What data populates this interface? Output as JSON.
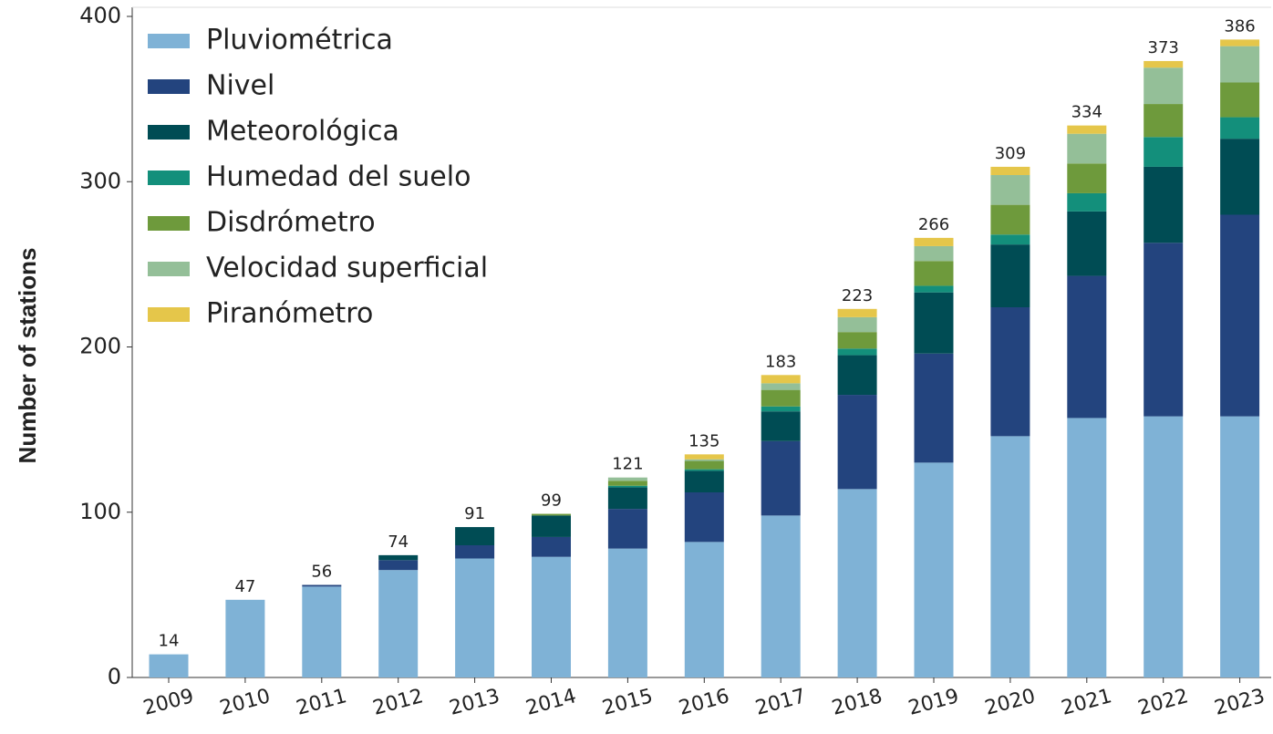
{
  "chart_data": {
    "type": "stacked_bar",
    "ylabel": "Number of stations",
    "categories": [
      "2009",
      "2010",
      "2011",
      "2012",
      "2013",
      "2014",
      "2015",
      "2016",
      "2017",
      "2018",
      "2019",
      "2020",
      "2021",
      "2022",
      "2023"
    ],
    "series": [
      {
        "name": "Pluviométrica",
        "color": "#7fb2d6",
        "values": [
          14,
          47,
          55,
          65,
          72,
          73,
          78,
          82,
          98,
          114,
          130,
          146,
          157,
          158,
          158
        ]
      },
      {
        "name": "Nivel",
        "color": "#23447e",
        "values": [
          0,
          0,
          1,
          6,
          8,
          12,
          24,
          30,
          45,
          57,
          66,
          78,
          86,
          105,
          122
        ]
      },
      {
        "name": "Meteorológica",
        "color": "#004c54",
        "values": [
          0,
          0,
          0,
          3,
          11,
          13,
          13,
          13,
          18,
          24,
          37,
          38,
          39,
          46,
          46
        ]
      },
      {
        "name": "Humedad del suelo",
        "color": "#138f7b",
        "values": [
          0,
          0,
          0,
          0,
          0,
          0,
          1,
          1,
          3,
          4,
          4,
          6,
          11,
          18,
          13
        ]
      },
      {
        "name": "Disdrómetro",
        "color": "#6e9a3c",
        "values": [
          0,
          0,
          0,
          0,
          0,
          1,
          3,
          5,
          10,
          10,
          15,
          18,
          18,
          20,
          21
        ]
      },
      {
        "name": "Velocidad superficial",
        "color": "#94bf98",
        "values": [
          0,
          0,
          0,
          0,
          0,
          0,
          2,
          1,
          4,
          9,
          9,
          18,
          18,
          22,
          22
        ]
      },
      {
        "name": "Piranómetro",
        "color": "#e5c64a",
        "values": [
          0,
          0,
          0,
          0,
          0,
          0,
          0,
          3,
          5,
          5,
          5,
          5,
          5,
          4,
          4
        ]
      }
    ],
    "totals": [
      14,
      47,
      56,
      74,
      91,
      99,
      121,
      135,
      183,
      223,
      266,
      309,
      334,
      373,
      386
    ],
    "ylim": [
      0,
      400
    ],
    "yticks": [
      0,
      100,
      200,
      300,
      400
    ],
    "legend": "upper left"
  }
}
